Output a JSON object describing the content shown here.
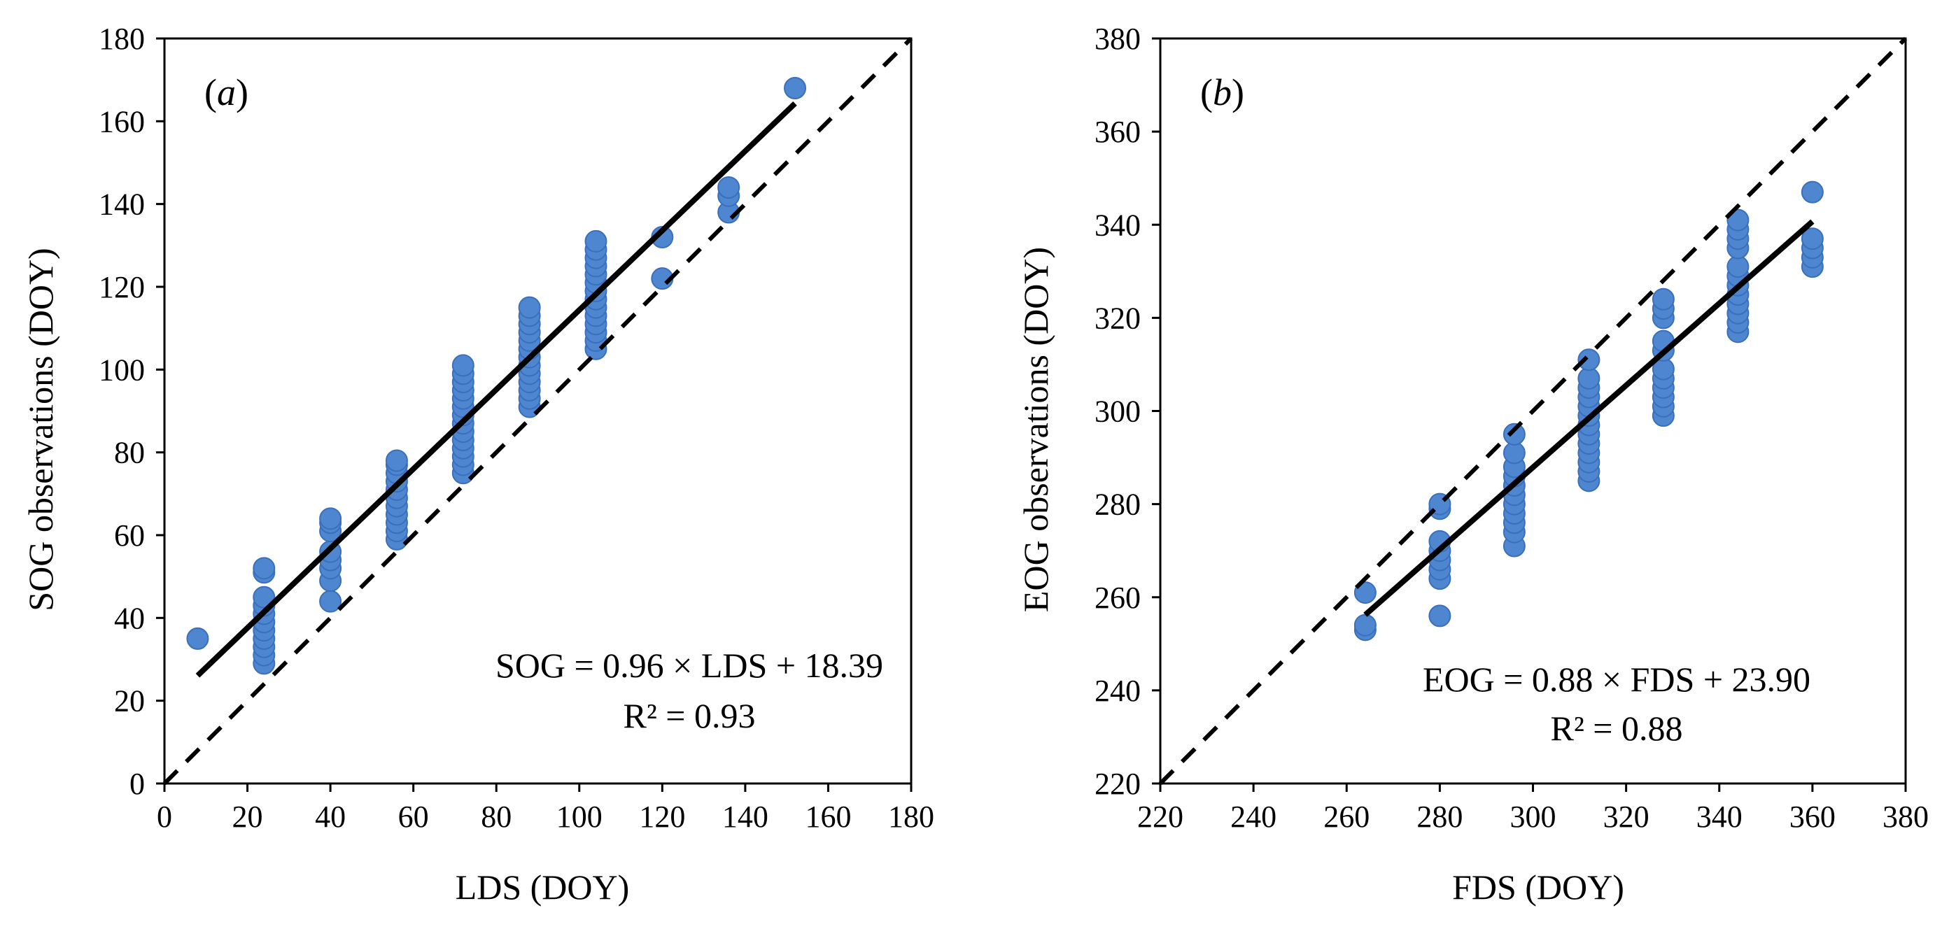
{
  "colors": {
    "points": "#4f86d0",
    "point_stroke": "#3a6fbd",
    "lines": "#000000",
    "background": "#ffffff"
  },
  "chart_data": [
    {
      "type": "scatter",
      "panel_label": "a",
      "xlabel": "LDS (DOY)",
      "ylabel": "SOG observations  (DOY)",
      "xlim": [
        0,
        180
      ],
      "ylim": [
        0,
        180
      ],
      "xticks": [
        0,
        20,
        40,
        60,
        80,
        100,
        120,
        140,
        160,
        180
      ],
      "yticks": [
        0,
        20,
        40,
        60,
        80,
        100,
        120,
        140,
        160,
        180
      ],
      "equation": "SOG = 0.96 × LDS + 18.39",
      "r2": "R² = 0.93",
      "fit": {
        "slope": 0.96,
        "intercept": 18.39,
        "x_range": [
          8,
          152
        ]
      },
      "reference_line": "1:1 dashed",
      "points": [
        [
          8,
          35
        ],
        [
          24,
          29
        ],
        [
          24,
          31
        ],
        [
          24,
          33
        ],
        [
          24,
          35
        ],
        [
          24,
          37
        ],
        [
          24,
          39
        ],
        [
          24,
          41
        ],
        [
          24,
          43
        ],
        [
          24,
          45
        ],
        [
          24,
          51
        ],
        [
          24,
          52
        ],
        [
          40,
          44
        ],
        [
          40,
          49
        ],
        [
          40,
          52
        ],
        [
          40,
          54
        ],
        [
          40,
          56
        ],
        [
          40,
          61
        ],
        [
          40,
          63
        ],
        [
          40,
          64
        ],
        [
          56,
          59
        ],
        [
          56,
          61
        ],
        [
          56,
          63
        ],
        [
          56,
          65
        ],
        [
          56,
          67
        ],
        [
          56,
          69
        ],
        [
          56,
          71
        ],
        [
          56,
          73
        ],
        [
          56,
          75
        ],
        [
          56,
          77
        ],
        [
          56,
          78
        ],
        [
          72,
          75
        ],
        [
          72,
          77
        ],
        [
          72,
          79
        ],
        [
          72,
          81
        ],
        [
          72,
          83
        ],
        [
          72,
          85
        ],
        [
          72,
          87
        ],
        [
          72,
          89
        ],
        [
          72,
          91
        ],
        [
          72,
          93
        ],
        [
          72,
          95
        ],
        [
          72,
          97
        ],
        [
          72,
          99
        ],
        [
          72,
          101
        ],
        [
          88,
          91
        ],
        [
          88,
          93
        ],
        [
          88,
          95
        ],
        [
          88,
          97
        ],
        [
          88,
          99
        ],
        [
          88,
          101
        ],
        [
          88,
          103
        ],
        [
          88,
          105
        ],
        [
          88,
          107
        ],
        [
          88,
          109
        ],
        [
          88,
          111
        ],
        [
          88,
          113
        ],
        [
          88,
          115
        ],
        [
          104,
          105
        ],
        [
          104,
          107
        ],
        [
          104,
          109
        ],
        [
          104,
          111
        ],
        [
          104,
          113
        ],
        [
          104,
          115
        ],
        [
          104,
          117
        ],
        [
          104,
          119
        ],
        [
          104,
          121
        ],
        [
          104,
          123
        ],
        [
          104,
          125
        ],
        [
          104,
          127
        ],
        [
          104,
          129
        ],
        [
          104,
          131
        ],
        [
          120,
          122
        ],
        [
          120,
          132
        ],
        [
          136,
          138
        ],
        [
          136,
          142
        ],
        [
          136,
          144
        ],
        [
          152,
          168
        ]
      ]
    },
    {
      "type": "scatter",
      "panel_label": "b",
      "xlabel": "FDS (DOY)",
      "ylabel": "EOG observations  (DOY)",
      "xlim": [
        220,
        380
      ],
      "ylim": [
        220,
        380
      ],
      "xticks": [
        220,
        240,
        260,
        280,
        300,
        320,
        340,
        360,
        380
      ],
      "yticks": [
        220,
        240,
        260,
        280,
        300,
        320,
        340,
        360,
        380
      ],
      "equation": "EOG = 0.88 × FDS + 23.90",
      "r2": "R² = 0.88",
      "fit": {
        "slope": 0.88,
        "intercept": 23.9,
        "x_range": [
          264,
          360
        ]
      },
      "reference_line": "1:1 dashed",
      "points": [
        [
          264,
          253
        ],
        [
          264,
          254
        ],
        [
          264,
          261
        ],
        [
          280,
          256
        ],
        [
          280,
          264
        ],
        [
          280,
          266
        ],
        [
          280,
          268
        ],
        [
          280,
          270
        ],
        [
          280,
          272
        ],
        [
          280,
          279
        ],
        [
          280,
          280
        ],
        [
          296,
          271
        ],
        [
          296,
          274
        ],
        [
          296,
          276
        ],
        [
          296,
          278
        ],
        [
          296,
          280
        ],
        [
          296,
          282
        ],
        [
          296,
          284
        ],
        [
          296,
          286
        ],
        [
          296,
          288
        ],
        [
          296,
          291
        ],
        [
          296,
          295
        ],
        [
          312,
          285
        ],
        [
          312,
          287
        ],
        [
          312,
          289
        ],
        [
          312,
          291
        ],
        [
          312,
          293
        ],
        [
          312,
          295
        ],
        [
          312,
          297
        ],
        [
          312,
          299
        ],
        [
          312,
          301
        ],
        [
          312,
          303
        ],
        [
          312,
          305
        ],
        [
          312,
          307
        ],
        [
          312,
          311
        ],
        [
          328,
          299
        ],
        [
          328,
          301
        ],
        [
          328,
          303
        ],
        [
          328,
          305
        ],
        [
          328,
          307
        ],
        [
          328,
          309
        ],
        [
          328,
          313
        ],
        [
          328,
          315
        ],
        [
          328,
          320
        ],
        [
          328,
          322
        ],
        [
          328,
          324
        ],
        [
          344,
          317
        ],
        [
          344,
          319
        ],
        [
          344,
          321
        ],
        [
          344,
          323
        ],
        [
          344,
          325
        ],
        [
          344,
          327
        ],
        [
          344,
          329
        ],
        [
          344,
          331
        ],
        [
          344,
          335
        ],
        [
          344,
          337
        ],
        [
          344,
          339
        ],
        [
          344,
          341
        ],
        [
          360,
          331
        ],
        [
          360,
          333
        ],
        [
          360,
          335
        ],
        [
          360,
          337
        ],
        [
          360,
          347
        ]
      ]
    }
  ]
}
